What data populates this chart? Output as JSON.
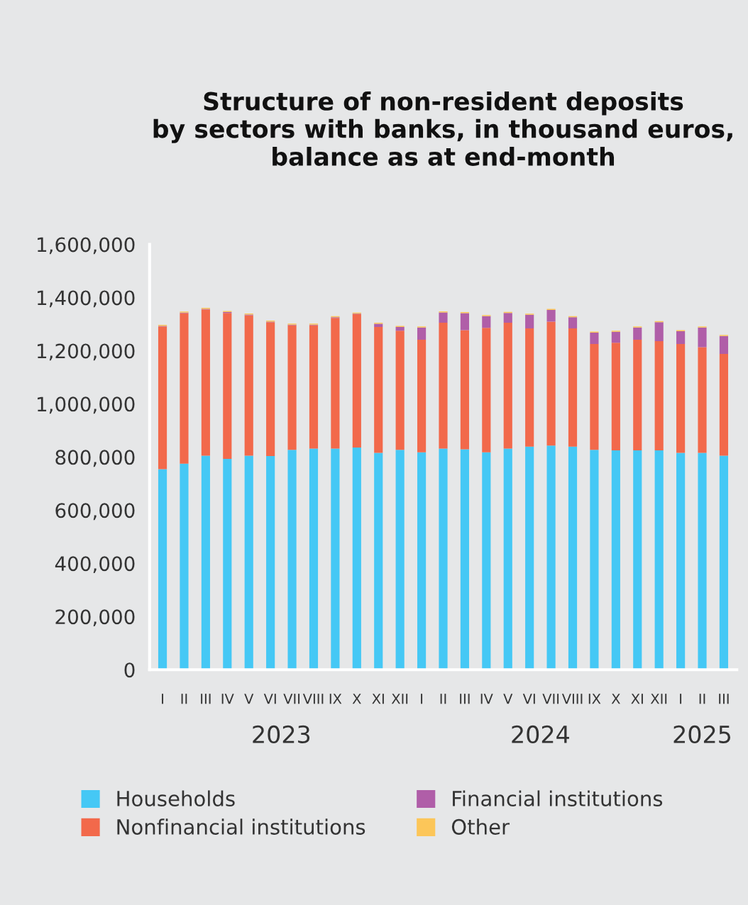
{
  "chart_data": {
    "type": "bar",
    "title": "Structure of non-resident deposits\nby sectors with banks, in thousand euros,\nbalance as at end-month",
    "categories": [
      "I",
      "II",
      "III",
      "IV",
      "V",
      "VI",
      "VII",
      "VIII",
      "IX",
      "X",
      "XI",
      "XII",
      "I",
      "II",
      "III",
      "IV",
      "V",
      "VI",
      "VII",
      "VIII",
      "IX",
      "X",
      "XI",
      "XII",
      "I",
      "II",
      "III"
    ],
    "stacked": true,
    "series": [
      {
        "name": "Households",
        "color": "#45c8f5",
        "values": [
          754000,
          775000,
          805000,
          793000,
          805000,
          804000,
          827000,
          832000,
          832000,
          836000,
          816000,
          827000,
          818000,
          832000,
          829000,
          818000,
          832000,
          839000,
          843000,
          839000,
          827000,
          825000,
          825000,
          825000,
          816000,
          816000,
          805000
        ]
      },
      {
        "name": "Nonfinancial institutions",
        "color": "#f2694b",
        "values": [
          537000,
          566000,
          550000,
          549000,
          528000,
          503000,
          469000,
          464000,
          491000,
          501000,
          473000,
          448000,
          423000,
          473000,
          448000,
          468000,
          473000,
          445000,
          466000,
          445000,
          398000,
          405000,
          416000,
          411000,
          409000,
          397000,
          383000
        ]
      },
      {
        "name": "Financial institutions",
        "color": "#b05ea8",
        "values": [
          2000,
          2000,
          2000,
          3000,
          3000,
          2000,
          2000,
          2000,
          3000,
          2000,
          12000,
          14000,
          46000,
          39000,
          64000,
          44000,
          37000,
          51000,
          44000,
          42000,
          43000,
          41000,
          46000,
          71000,
          48000,
          74000,
          67000
        ]
      },
      {
        "name": "Other",
        "color": "#fcc659",
        "values": [
          4000,
          4000,
          4000,
          4000,
          4000,
          4000,
          4000,
          4000,
          4000,
          4000,
          4000,
          4000,
          4000,
          4000,
          4000,
          4000,
          4000,
          4000,
          4000,
          4000,
          4000,
          4000,
          4000,
          4000,
          4000,
          4000,
          4000
        ]
      }
    ],
    "ylim": [
      0,
      1600000
    ],
    "yticks": [
      0,
      {
        "value": 200000,
        "label": "200,000"
      },
      {
        "value": 400000,
        "label": "400,000"
      },
      {
        "value": 600000,
        "label": "600,000"
      },
      {
        "value": 800000,
        "label": "800,000"
      },
      {
        "value": 1000000,
        "label": "1,000,000"
      },
      {
        "value": 1200000,
        "label": "1,200,000"
      },
      {
        "value": 1400000,
        "label": "1,400,000"
      },
      {
        "value": 1600000,
        "label": "1,600,000"
      }
    ],
    "annotations": [
      "2023",
      "2024",
      "2025"
    ],
    "grid": false,
    "legend": "bottom"
  }
}
